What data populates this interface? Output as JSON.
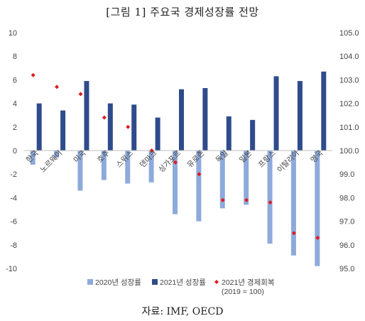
{
  "figure": {
    "title": "[그림 1] 주요국 경제성장률 전망",
    "source": "자료: IMF, OECD"
  },
  "chart_data": {
    "type": "bar",
    "categories": [
      "한국",
      "노르웨이",
      "미국",
      "호주",
      "스위스",
      "덴마크",
      "싱가포르",
      "유로존",
      "독일",
      "일본",
      "프랑스",
      "이탈리아",
      "영국"
    ],
    "series": [
      {
        "name": "2020년 성장률",
        "type": "bar",
        "axis": "left",
        "color": "#8eaadb",
        "values": [
          -1.2,
          -0.6,
          -3.4,
          -2.5,
          -2.8,
          -2.7,
          -5.4,
          -6.0,
          -4.9,
          -4.6,
          -7.9,
          -8.9,
          -9.8
        ]
      },
      {
        "name": "2021년 성장률",
        "type": "bar",
        "axis": "left",
        "color": "#2f4b8c",
        "values": [
          4.0,
          3.4,
          5.9,
          4.0,
          3.9,
          2.8,
          5.2,
          5.3,
          2.9,
          2.6,
          6.3,
          5.9,
          6.7
        ]
      },
      {
        "name": "2021년 경제회복",
        "name_line2": "(2019 = 100)",
        "type": "scatter",
        "axis": "right",
        "color": "#e31a1c",
        "marker": "diamond",
        "values": [
          103.2,
          102.7,
          102.4,
          101.4,
          101.0,
          100.0,
          99.5,
          99.0,
          97.9,
          97.9,
          97.8,
          96.5,
          96.3
        ]
      }
    ],
    "y_left": {
      "min": -10,
      "max": 10,
      "step": 2,
      "ticks": [
        "10",
        "8",
        "6",
        "4",
        "2",
        "0",
        "-2",
        "-4",
        "-6",
        "-8",
        "-10"
      ]
    },
    "y_right": {
      "min": 95,
      "max": 105,
      "step": 1,
      "ticks": [
        "105.0",
        "104.0",
        "103.0",
        "102.0",
        "101.0",
        "100.0",
        "99.0",
        "98.0",
        "97.0",
        "96.0",
        "95.0"
      ]
    },
    "grid": false,
    "legend_position": "bottom"
  }
}
